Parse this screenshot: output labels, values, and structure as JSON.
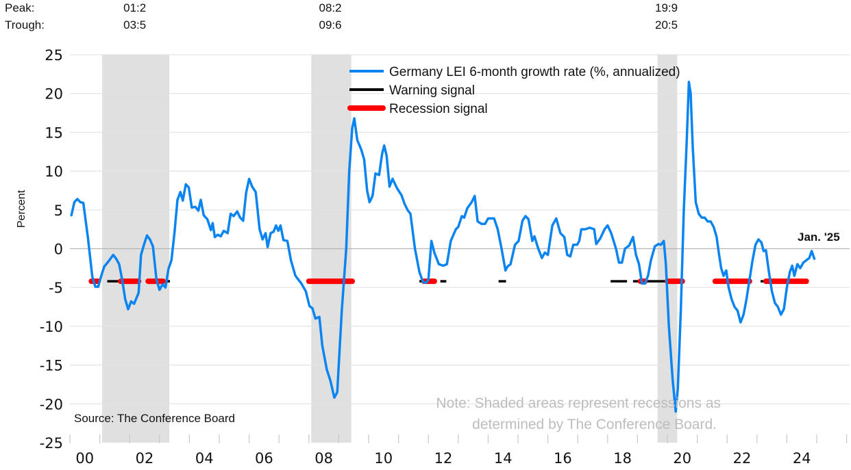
{
  "chart_data": {
    "type": "line",
    "title": "",
    "xlabel": "",
    "ylabel": "Percent",
    "ylim": [
      -25,
      25
    ],
    "yticks": [
      25,
      20,
      15,
      10,
      5,
      0,
      -5,
      -10,
      -15,
      -20,
      -25
    ],
    "xlim": [
      2000,
      2025.5
    ],
    "xtick_labels": [
      {
        "year": 2000,
        "label": "00"
      },
      {
        "year": 2002,
        "label": "02"
      },
      {
        "year": 2004,
        "label": "04"
      },
      {
        "year": 2006,
        "label": "06"
      },
      {
        "year": 2008,
        "label": "08"
      },
      {
        "year": 2010,
        "label": "10"
      },
      {
        "year": 2012,
        "label": "12"
      },
      {
        "year": 2014,
        "label": "14"
      },
      {
        "year": 2016,
        "label": "16"
      },
      {
        "year": 2018,
        "label": "18"
      },
      {
        "year": 2020,
        "label": "20"
      },
      {
        "year": 2022,
        "label": "22"
      },
      {
        "year": 2024,
        "label": "24"
      }
    ],
    "grid": true,
    "legend_position": "top-center",
    "colors": {
      "series": "#0a84f0",
      "warning": "#000000",
      "recession_signal": "#ff0000",
      "recession_shade": "#e0e0e0",
      "grid": "#e3e3e3",
      "zero_line": "#b5b5b5"
    },
    "header": {
      "peak_label": "Peak:",
      "trough_label": "Trough:"
    },
    "recessions": [
      {
        "peak": "01:2",
        "trough": "03:5",
        "start": 2001.08,
        "end": 2003.33
      },
      {
        "peak": "08:2",
        "trough": "09:6",
        "start": 2008.08,
        "end": 2009.42
      },
      {
        "peak": "19:9",
        "trough": "20:5",
        "start": 2019.67,
        "end": 2020.33
      }
    ],
    "legend": [
      {
        "key": "series",
        "label": "Germany LEI 6-month growth rate (%, annualized)"
      },
      {
        "key": "warning",
        "label": "Warning signal"
      },
      {
        "key": "recession_signal",
        "label": "Recession signal"
      }
    ],
    "signal_level": -4.2,
    "warning_signals": [
      {
        "start": 2001.25,
        "end": 2001.75
      },
      {
        "start": 2003.2,
        "end": 2003.35
      },
      {
        "start": 2011.7,
        "end": 2011.85
      },
      {
        "start": 2012.4,
        "end": 2012.6
      },
      {
        "start": 2014.35,
        "end": 2014.6
      },
      {
        "start": 2018.1,
        "end": 2018.65
      },
      {
        "start": 2018.85,
        "end": 2019.05
      },
      {
        "start": 2019.1,
        "end": 2019.95
      },
      {
        "start": 2023.12,
        "end": 2023.3
      }
    ],
    "recession_signals": [
      {
        "start": 2000.72,
        "end": 2000.95
      },
      {
        "start": 2001.7,
        "end": 2002.3
      },
      {
        "start": 2002.62,
        "end": 2003.12
      },
      {
        "start": 2008.0,
        "end": 2009.45
      },
      {
        "start": 2011.85,
        "end": 2012.2
      },
      {
        "start": 2019.1,
        "end": 2019.25
      },
      {
        "start": 2020.0,
        "end": 2020.5
      },
      {
        "start": 2021.6,
        "end": 2022.75
      },
      {
        "start": 2023.3,
        "end": 2024.65
      }
    ],
    "series": [
      {
        "name": "Germany LEI 6-month growth rate (%, annualized)",
        "points": [
          [
            2000.05,
            4.3
          ],
          [
            2000.15,
            6.0
          ],
          [
            2000.25,
            6.4
          ],
          [
            2000.35,
            6.0
          ],
          [
            2000.45,
            5.9
          ],
          [
            2000.6,
            1.5
          ],
          [
            2000.75,
            -3.6
          ],
          [
            2000.85,
            -4.9
          ],
          [
            2000.95,
            -4.9
          ],
          [
            2001.05,
            -3.5
          ],
          [
            2001.15,
            -2.3
          ],
          [
            2001.3,
            -1.6
          ],
          [
            2001.45,
            -0.8
          ],
          [
            2001.55,
            -1.3
          ],
          [
            2001.65,
            -2.0
          ],
          [
            2001.75,
            -4.0
          ],
          [
            2001.85,
            -6.5
          ],
          [
            2001.95,
            -7.8
          ],
          [
            2002.05,
            -6.8
          ],
          [
            2002.15,
            -7.1
          ],
          [
            2002.3,
            -5.7
          ],
          [
            2002.38,
            -0.8
          ],
          [
            2002.48,
            0.5
          ],
          [
            2002.58,
            1.7
          ],
          [
            2002.68,
            1.2
          ],
          [
            2002.78,
            0.3
          ],
          [
            2002.9,
            -4.0
          ],
          [
            2003.0,
            -5.3
          ],
          [
            2003.1,
            -4.6
          ],
          [
            2003.2,
            -5.0
          ],
          [
            2003.3,
            -2.6
          ],
          [
            2003.4,
            -1.5
          ],
          [
            2003.5,
            2.0
          ],
          [
            2003.6,
            6.3
          ],
          [
            2003.7,
            7.3
          ],
          [
            2003.78,
            6.2
          ],
          [
            2003.88,
            8.3
          ],
          [
            2003.98,
            7.9
          ],
          [
            2004.08,
            5.3
          ],
          [
            2004.2,
            5.4
          ],
          [
            2004.3,
            4.9
          ],
          [
            2004.38,
            6.3
          ],
          [
            2004.48,
            4.3
          ],
          [
            2004.6,
            3.8
          ],
          [
            2004.72,
            2.4
          ],
          [
            2004.78,
            3.3
          ],
          [
            2004.85,
            1.5
          ],
          [
            2004.95,
            1.8
          ],
          [
            2005.05,
            1.6
          ],
          [
            2005.15,
            2.3
          ],
          [
            2005.28,
            2.0
          ],
          [
            2005.38,
            4.5
          ],
          [
            2005.48,
            4.2
          ],
          [
            2005.6,
            4.8
          ],
          [
            2005.7,
            4.0
          ],
          [
            2005.8,
            3.6
          ],
          [
            2005.9,
            7.2
          ],
          [
            2006.0,
            9.0
          ],
          [
            2006.1,
            8.0
          ],
          [
            2006.22,
            7.3
          ],
          [
            2006.35,
            2.5
          ],
          [
            2006.45,
            1.2
          ],
          [
            2006.55,
            2.0
          ],
          [
            2006.62,
            0.2
          ],
          [
            2006.72,
            2.0
          ],
          [
            2006.82,
            2.2
          ],
          [
            2006.9,
            3.0
          ],
          [
            2006.98,
            2.3
          ],
          [
            2007.05,
            3.0
          ],
          [
            2007.15,
            1.1
          ],
          [
            2007.28,
            1.0
          ],
          [
            2007.4,
            -1.5
          ],
          [
            2007.55,
            -3.5
          ],
          [
            2007.75,
            -4.5
          ],
          [
            2007.9,
            -5.5
          ],
          [
            2008.02,
            -7.4
          ],
          [
            2008.12,
            -7.7
          ],
          [
            2008.22,
            -9.0
          ],
          [
            2008.35,
            -8.8
          ],
          [
            2008.45,
            -12.5
          ],
          [
            2008.6,
            -15.6
          ],
          [
            2008.72,
            -17.0
          ],
          [
            2008.85,
            -19.2
          ],
          [
            2008.95,
            -18.5
          ],
          [
            2009.1,
            -8.0
          ],
          [
            2009.25,
            0.0
          ],
          [
            2009.35,
            10.0
          ],
          [
            2009.45,
            15.5
          ],
          [
            2009.52,
            16.8
          ],
          [
            2009.62,
            14.0
          ],
          [
            2009.75,
            12.8
          ],
          [
            2009.85,
            11.5
          ],
          [
            2009.95,
            7.5
          ],
          [
            2010.03,
            6.0
          ],
          [
            2010.13,
            6.8
          ],
          [
            2010.23,
            9.7
          ],
          [
            2010.35,
            9.5
          ],
          [
            2010.45,
            12.2
          ],
          [
            2010.52,
            13.3
          ],
          [
            2010.6,
            12.0
          ],
          [
            2010.7,
            8.0
          ],
          [
            2010.8,
            9.0
          ],
          [
            2010.95,
            7.8
          ],
          [
            2011.1,
            6.9
          ],
          [
            2011.2,
            5.8
          ],
          [
            2011.3,
            5.0
          ],
          [
            2011.4,
            4.5
          ],
          [
            2011.55,
            0.0
          ],
          [
            2011.7,
            -3.0
          ],
          [
            2011.82,
            -4.3
          ],
          [
            2011.92,
            -4.4
          ],
          [
            2012.0,
            -4.0
          ],
          [
            2012.1,
            1.0
          ],
          [
            2012.2,
            -0.5
          ],
          [
            2012.35,
            -2.0
          ],
          [
            2012.5,
            -2.2
          ],
          [
            2012.62,
            -2.0
          ],
          [
            2012.75,
            1.0
          ],
          [
            2012.92,
            2.5
          ],
          [
            2013.0,
            2.8
          ],
          [
            2013.12,
            4.2
          ],
          [
            2013.2,
            4.0
          ],
          [
            2013.3,
            5.2
          ],
          [
            2013.45,
            6.0
          ],
          [
            2013.55,
            6.8
          ],
          [
            2013.65,
            3.5
          ],
          [
            2013.78,
            3.2
          ],
          [
            2013.9,
            3.2
          ],
          [
            2014.0,
            3.9
          ],
          [
            2014.2,
            3.9
          ],
          [
            2014.32,
            2.5
          ],
          [
            2014.45,
            0.0
          ],
          [
            2014.58,
            -2.8
          ],
          [
            2014.65,
            -2.3
          ],
          [
            2014.75,
            -2.0
          ],
          [
            2014.9,
            0.5
          ],
          [
            2015.02,
            1.0
          ],
          [
            2015.15,
            3.6
          ],
          [
            2015.25,
            4.2
          ],
          [
            2015.35,
            3.8
          ],
          [
            2015.48,
            1.0
          ],
          [
            2015.55,
            1.6
          ],
          [
            2015.68,
            0.0
          ],
          [
            2015.8,
            -1.2
          ],
          [
            2015.9,
            -0.5
          ],
          [
            2016.0,
            -0.8
          ],
          [
            2016.15,
            3.0
          ],
          [
            2016.28,
            3.9
          ],
          [
            2016.42,
            2.0
          ],
          [
            2016.55,
            1.5
          ],
          [
            2016.65,
            -0.8
          ],
          [
            2016.75,
            -1.0
          ],
          [
            2016.85,
            0.5
          ],
          [
            2016.98,
            0.5
          ],
          [
            2017.05,
            1.0
          ],
          [
            2017.12,
            2.5
          ],
          [
            2017.25,
            2.5
          ],
          [
            2017.4,
            2.7
          ],
          [
            2017.55,
            2.5
          ],
          [
            2017.62,
            0.6
          ],
          [
            2017.75,
            1.3
          ],
          [
            2017.9,
            2.5
          ],
          [
            2018.0,
            3.0
          ],
          [
            2018.12,
            2.0
          ],
          [
            2018.28,
            0.0
          ],
          [
            2018.38,
            -1.8
          ],
          [
            2018.48,
            -1.8
          ],
          [
            2018.58,
            0.0
          ],
          [
            2018.72,
            0.4
          ],
          [
            2018.85,
            1.5
          ],
          [
            2018.95,
            -0.8
          ],
          [
            2019.05,
            -2.0
          ],
          [
            2019.15,
            -4.5
          ],
          [
            2019.25,
            -4.5
          ],
          [
            2019.35,
            -3.5
          ],
          [
            2019.45,
            -1.5
          ],
          [
            2019.58,
            0.3
          ],
          [
            2019.7,
            0.6
          ],
          [
            2019.78,
            0.5
          ],
          [
            2019.88,
            1.0
          ],
          [
            2019.95,
            -2.0
          ],
          [
            2020.05,
            -10.0
          ],
          [
            2020.18,
            -17.0
          ],
          [
            2020.28,
            -21.0
          ],
          [
            2020.35,
            -18.0
          ],
          [
            2020.45,
            -8.0
          ],
          [
            2020.55,
            5.0
          ],
          [
            2020.65,
            14.0
          ],
          [
            2020.72,
            21.5
          ],
          [
            2020.78,
            20.0
          ],
          [
            2020.85,
            13.0
          ],
          [
            2020.95,
            6.0
          ],
          [
            2021.05,
            4.5
          ],
          [
            2021.15,
            4.0
          ],
          [
            2021.25,
            4.0
          ],
          [
            2021.35,
            3.5
          ],
          [
            2021.45,
            3.5
          ],
          [
            2021.55,
            2.8
          ],
          [
            2021.65,
            1.5
          ],
          [
            2021.72,
            -0.5
          ],
          [
            2021.8,
            -2.5
          ],
          [
            2021.88,
            -3.5
          ],
          [
            2021.97,
            -2.8
          ],
          [
            2022.05,
            -5.0
          ],
          [
            2022.15,
            -6.5
          ],
          [
            2022.25,
            -7.5
          ],
          [
            2022.35,
            -8.0
          ],
          [
            2022.45,
            -9.5
          ],
          [
            2022.55,
            -8.5
          ],
          [
            2022.65,
            -6.5
          ],
          [
            2022.75,
            -4.0
          ],
          [
            2022.85,
            -1.5
          ],
          [
            2022.95,
            0.5
          ],
          [
            2023.05,
            1.2
          ],
          [
            2023.15,
            0.8
          ],
          [
            2023.22,
            -0.3
          ],
          [
            2023.3,
            -0.2
          ],
          [
            2023.4,
            -3.0
          ],
          [
            2023.5,
            -5.5
          ],
          [
            2023.6,
            -7.0
          ],
          [
            2023.7,
            -7.5
          ],
          [
            2023.8,
            -8.5
          ],
          [
            2023.9,
            -7.8
          ],
          [
            2024.0,
            -5.0
          ],
          [
            2024.1,
            -3.0
          ],
          [
            2024.18,
            -2.2
          ],
          [
            2024.25,
            -3.5
          ],
          [
            2024.35,
            -2.0
          ],
          [
            2024.45,
            -2.5
          ],
          [
            2024.55,
            -1.8
          ],
          [
            2024.65,
            -1.5
          ],
          [
            2024.75,
            -1.2
          ],
          [
            2024.83,
            -0.3
          ],
          [
            2024.92,
            -1.3
          ]
        ]
      }
    ],
    "annotations": {
      "last_point_label": "Jan. '25",
      "source": "Source: The Conference Board",
      "note_line1": "Note: Shaded areas represent recessions as",
      "note_line2": "determined by The Conference Board."
    }
  }
}
